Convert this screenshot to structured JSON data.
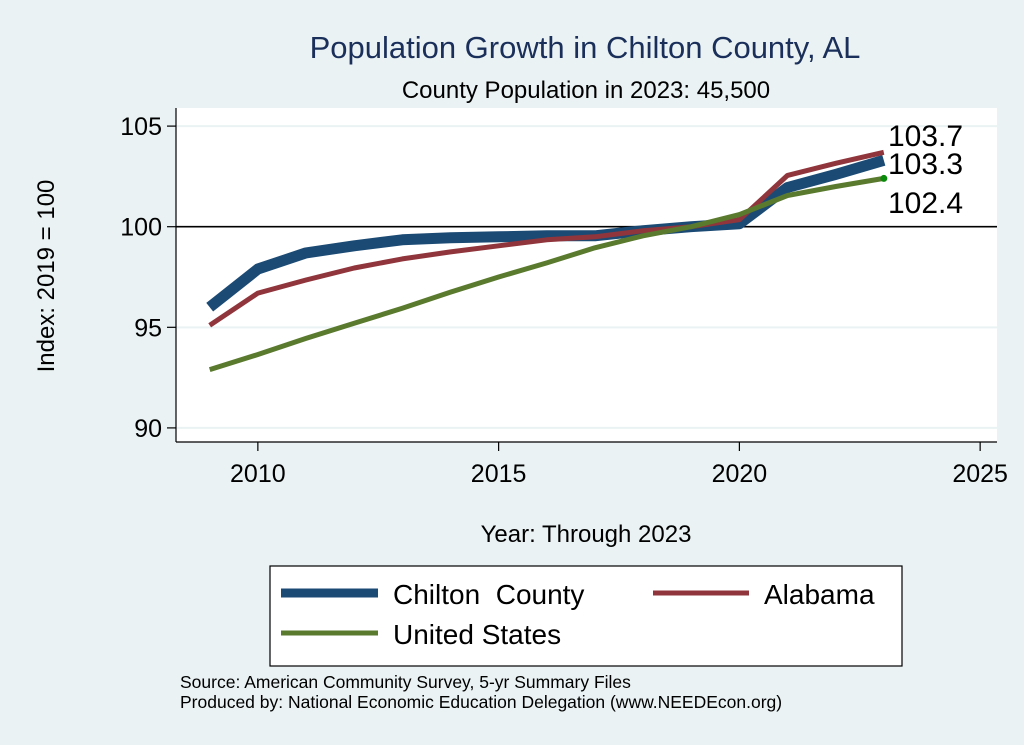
{
  "chart_data": {
    "type": "line",
    "title": "Population Growth in Chilton County, AL",
    "subtitle": "County Population in 2023: 45,500",
    "xlabel": "Year: Through 2023",
    "ylabel": "Index: 2019 = 100",
    "xlim": [
      2008.3,
      2025.35
    ],
    "ylim": [
      89.3,
      105.9
    ],
    "x_ticks": [
      2010,
      2015,
      2020,
      2025
    ],
    "x_tick_labels": [
      "2010",
      "2015",
      "2020",
      "2025"
    ],
    "y_ticks": [
      90,
      95,
      100,
      105
    ],
    "y_tick_labels": [
      "90",
      "95",
      "100",
      "105"
    ],
    "reference_line": 100,
    "grid": true,
    "legend_position": "bottom",
    "x": [
      2009,
      2010,
      2011,
      2012,
      2013,
      2014,
      2015,
      2016,
      2017,
      2018,
      2019,
      2020,
      2021,
      2022,
      2023
    ],
    "series": [
      {
        "name": "Chilton  County",
        "color": "#1b4a74",
        "values": [
          96.0,
          97.9,
          98.7,
          99.05,
          99.35,
          99.45,
          99.5,
          99.55,
          99.55,
          99.8,
          100.0,
          100.15,
          101.95,
          102.6,
          103.3
        ],
        "end_label": "103.3"
      },
      {
        "name": "Alabama",
        "color": "#90353b",
        "values": [
          95.1,
          96.7,
          97.35,
          97.95,
          98.4,
          98.75,
          99.05,
          99.35,
          99.5,
          99.8,
          100.0,
          100.35,
          102.55,
          103.15,
          103.7
        ],
        "end_label": "103.7"
      },
      {
        "name": "United States",
        "color": "#5a7a2e",
        "values": [
          92.9,
          93.65,
          94.45,
          95.2,
          95.95,
          96.75,
          97.5,
          98.2,
          98.95,
          99.55,
          100.0,
          100.6,
          101.55,
          102.0,
          102.4
        ],
        "end_label": "102.4"
      }
    ],
    "notes": [
      "Source: American Community Survey, 5-yr Summary Files",
      "Produced by: National Economic Education Delegation (www.NEEDEcon.org)"
    ]
  }
}
